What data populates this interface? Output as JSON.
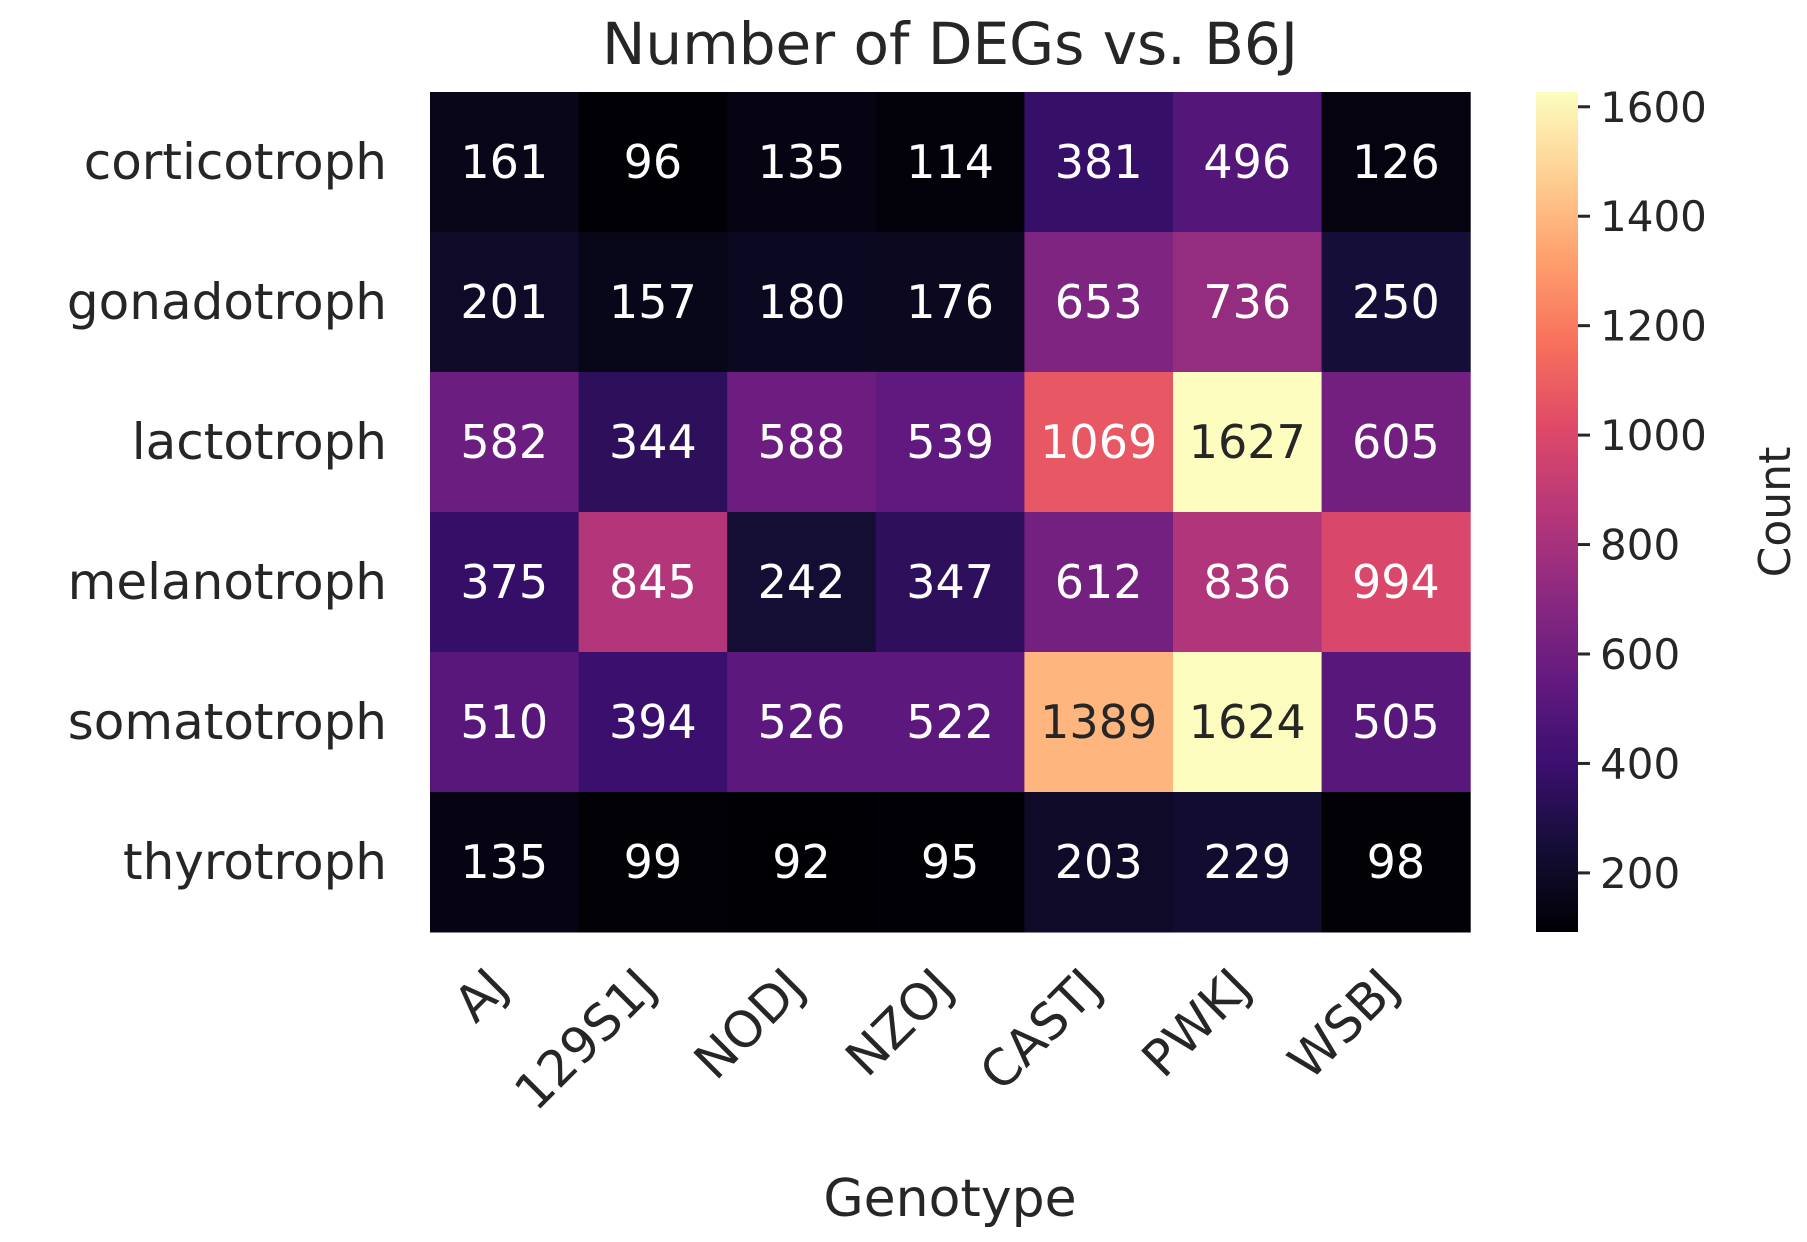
{
  "chart_data": {
    "type": "heatmap",
    "title": "Number of DEGs vs. B6J",
    "xlabel": "Genotype",
    "ylabel": "",
    "colorbar_label": "Count",
    "colormap": "magma",
    "x_categories": [
      "AJ",
      "129S1J",
      "NODJ",
      "NZOJ",
      "CASTJ",
      "PWKJ",
      "WSBJ"
    ],
    "y_categories": [
      "corticotroph",
      "gonadotroph",
      "lactotroph",
      "melanotroph",
      "somatotroph",
      "thyrotroph"
    ],
    "values": [
      [
        161,
        96,
        135,
        114,
        381,
        496,
        126
      ],
      [
        201,
        157,
        180,
        176,
        653,
        736,
        250
      ],
      [
        582,
        344,
        588,
        539,
        1069,
        1627,
        605
      ],
      [
        375,
        845,
        242,
        347,
        612,
        836,
        994
      ],
      [
        510,
        394,
        526,
        522,
        1389,
        1624,
        505
      ],
      [
        135,
        99,
        92,
        95,
        203,
        229,
        98
      ]
    ],
    "vmin": 92,
    "vmax": 1627,
    "colorbar_ticks": [
      200,
      400,
      600,
      800,
      1000,
      1200,
      1400,
      1600
    ],
    "grid": false
  }
}
